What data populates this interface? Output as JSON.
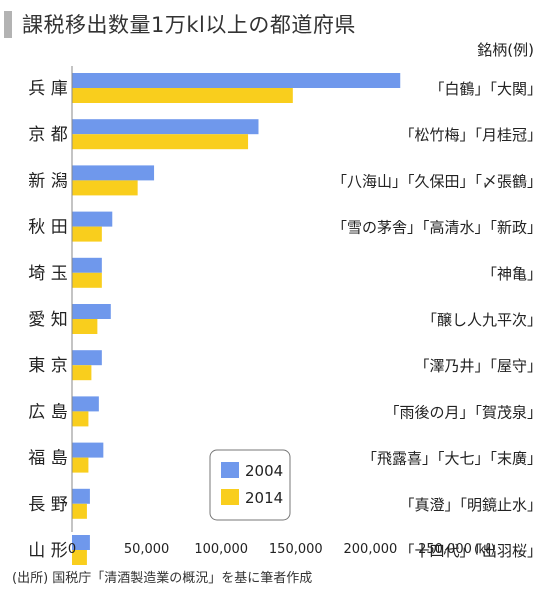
{
  "title": "課税移出数量1万kl以上の都道府県",
  "footnote": "(出所) 国税庁「清酒製造業の概況」を基に筆者作成",
  "colors": {
    "series_2004": "#6f98ec",
    "series_2014": "#f9ce1d",
    "axis": "#8a8a8a"
  },
  "chart_data": {
    "type": "bar",
    "orientation": "horizontal",
    "title": "課税移出数量1万kl以上の都道府県",
    "categories": [
      "兵 庫",
      "京 都",
      "新 潟",
      "秋 田",
      "埼 玉",
      "愛 知",
      "東 京",
      "広 島",
      "福 島",
      "長 野",
      "山 形"
    ],
    "series": [
      {
        "name": "2004",
        "color": "#6f98ec",
        "values": [
          220000,
          125000,
          55000,
          27000,
          20000,
          26000,
          20000,
          18000,
          21000,
          12000,
          12000
        ]
      },
      {
        "name": "2014",
        "color": "#f9ce1d",
        "values": [
          148000,
          118000,
          44000,
          20000,
          20000,
          17000,
          13000,
          11000,
          11000,
          10000,
          10000
        ]
      }
    ],
    "xlim": [
      0,
      250000
    ],
    "xticks": [
      0,
      50000,
      100000,
      150000,
      200000,
      250000
    ],
    "xtick_labels": [
      "0",
      "50,000",
      "100,000",
      "150,000",
      "200,000",
      "250,000"
    ],
    "xunit": "(㎘)",
    "brands_header": "銘柄(例)",
    "brands": [
      "「白鶴」「大関」",
      "「松竹梅」「月桂冠」",
      "「八海山」「久保田」「〆張鶴」",
      "「雪の茅舎」「高清水」「新政」",
      "「神亀」",
      "「醸し人九平次」",
      "「澤乃井」「屋守」",
      "「雨後の月」「賀茂泉」",
      "「飛露喜」「大七」「末廣」",
      "「真澄」「明鏡止水」",
      "「十四代」「出羽桜」"
    ],
    "legend": [
      "2004",
      "2014"
    ],
    "legend_position": "bottom-center",
    "grid": false
  }
}
